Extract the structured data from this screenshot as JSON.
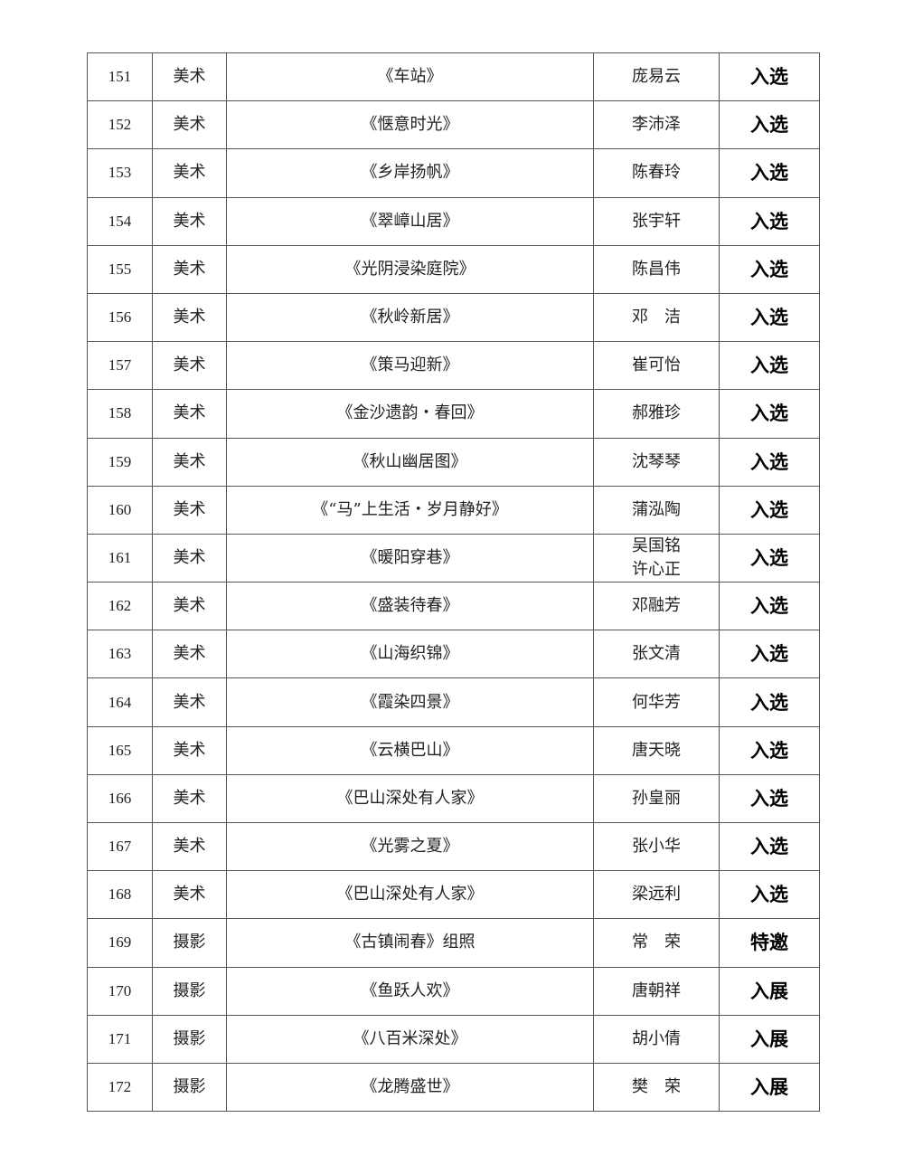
{
  "rows": [
    {
      "no": "151",
      "category": "美术",
      "title": "《车站》",
      "author": [
        "庞易云"
      ],
      "result": "入选"
    },
    {
      "no": "152",
      "category": "美术",
      "title": "《惬意时光》",
      "author": [
        "李沛泽"
      ],
      "result": "入选"
    },
    {
      "no": "153",
      "category": "美术",
      "title": "《乡岸扬帆》",
      "author": [
        "陈春玲"
      ],
      "result": "入选"
    },
    {
      "no": "154",
      "category": "美术",
      "title": "《翠嶂山居》",
      "author": [
        "张宇轩"
      ],
      "result": "入选"
    },
    {
      "no": "155",
      "category": "美术",
      "title": "《光阴浸染庭院》",
      "author": [
        "陈昌伟"
      ],
      "result": "入选"
    },
    {
      "no": "156",
      "category": "美术",
      "title": "《秋岭新居》",
      "author": [
        "邓　洁"
      ],
      "result": "入选"
    },
    {
      "no": "157",
      "category": "美术",
      "title": "《策马迎新》",
      "author": [
        "崔可怡"
      ],
      "result": "入选"
    },
    {
      "no": "158",
      "category": "美术",
      "title": "《金沙遗韵・春回》",
      "author": [
        "郝雅珍"
      ],
      "result": "入选"
    },
    {
      "no": "159",
      "category": "美术",
      "title": "《秋山幽居图》",
      "author": [
        "沈琴琴"
      ],
      "result": "入选"
    },
    {
      "no": "160",
      "category": "美术",
      "title": "《“马”上生活・岁月静好》",
      "author": [
        "蒲泓陶"
      ],
      "result": "入选"
    },
    {
      "no": "161",
      "category": "美术",
      "title": "《暖阳穿巷》",
      "author": [
        "吴国铭",
        "许心正"
      ],
      "result": "入选"
    },
    {
      "no": "162",
      "category": "美术",
      "title": "《盛装待春》",
      "author": [
        "邓融芳"
      ],
      "result": "入选"
    },
    {
      "no": "163",
      "category": "美术",
      "title": "《山海织锦》",
      "author": [
        "张文清"
      ],
      "result": "入选"
    },
    {
      "no": "164",
      "category": "美术",
      "title": "《霞染四景》",
      "author": [
        "何华芳"
      ],
      "result": "入选"
    },
    {
      "no": "165",
      "category": "美术",
      "title": "《云横巴山》",
      "author": [
        "唐天晓"
      ],
      "result": "入选"
    },
    {
      "no": "166",
      "category": "美术",
      "title": "《巴山深处有人家》",
      "author": [
        "孙皇丽"
      ],
      "result": "入选"
    },
    {
      "no": "167",
      "category": "美术",
      "title": "《光雾之夏》",
      "author": [
        "张小华"
      ],
      "result": "入选"
    },
    {
      "no": "168",
      "category": "美术",
      "title": "《巴山深处有人家》",
      "author": [
        "梁远利"
      ],
      "result": "入选"
    },
    {
      "no": "169",
      "category": "摄影",
      "title": "《古镇闹春》组照",
      "author": [
        "常　荣"
      ],
      "result": "特邀"
    },
    {
      "no": "170",
      "category": "摄影",
      "title": "《鱼跃人欢》",
      "author": [
        "唐朝祥"
      ],
      "result": "入展"
    },
    {
      "no": "171",
      "category": "摄影",
      "title": "《八百米深处》",
      "author": [
        "胡小倩"
      ],
      "result": "入展"
    },
    {
      "no": "172",
      "category": "摄影",
      "title": "《龙腾盛世》",
      "author": [
        "樊　荣"
      ],
      "result": "入展"
    }
  ]
}
